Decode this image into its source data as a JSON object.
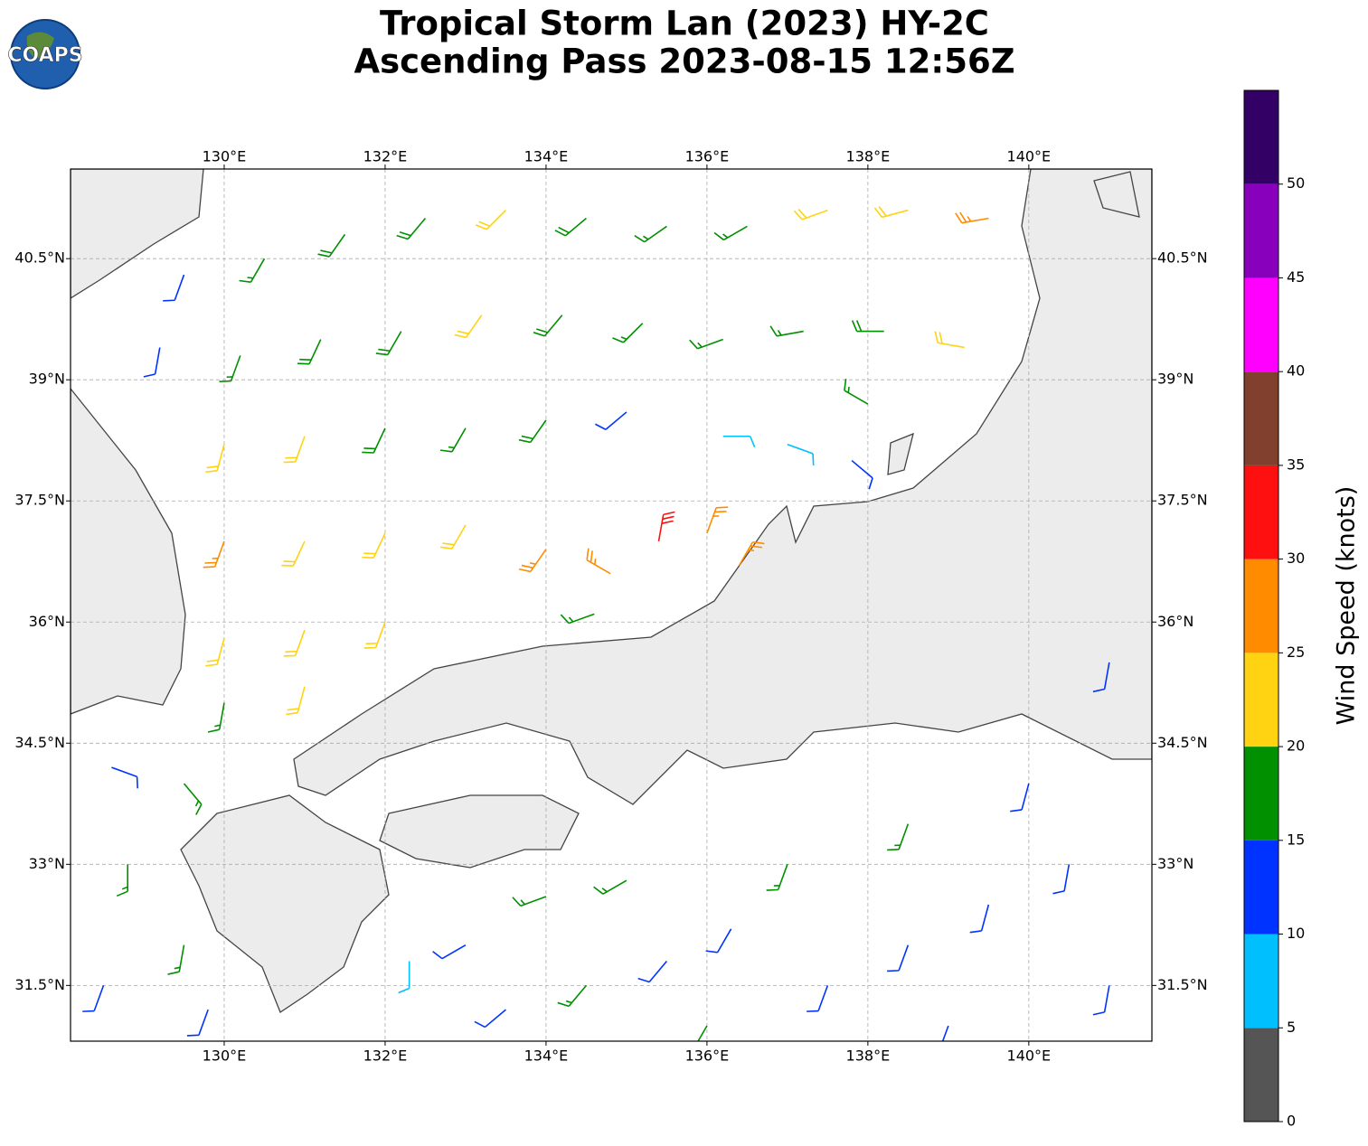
{
  "title": [
    "Tropical Storm Lan (2023) HY-2C",
    "Ascending Pass 2023-08-15 12:56Z"
  ],
  "logo": "COAPS",
  "map": {
    "lon_range": [
      128.09,
      141.53
    ],
    "lat_range": [
      30.81,
      41.61
    ],
    "grid": true,
    "lon_ticks": [
      {
        "value": 130,
        "label": "130°E"
      },
      {
        "value": 132,
        "label": "132°E"
      },
      {
        "value": 134,
        "label": "134°E"
      },
      {
        "value": 136,
        "label": "136°E"
      },
      {
        "value": 138,
        "label": "138°E"
      },
      {
        "value": 140,
        "label": "140°E"
      }
    ],
    "lat_ticks": [
      {
        "value": 31.5,
        "label": "31.5°N"
      },
      {
        "value": 33,
        "label": "33°N"
      },
      {
        "value": 34.5,
        "label": "34.5°N"
      },
      {
        "value": 36,
        "label": "36°N"
      },
      {
        "value": 37.5,
        "label": "37.5°N"
      },
      {
        "value": 39,
        "label": "39°N"
      },
      {
        "value": 40.5,
        "label": "40.5°N"
      }
    ]
  },
  "colorbar": {
    "label": "Wind Speed (knots)",
    "lim": [
      0,
      55
    ],
    "ticks": [
      0,
      5,
      10,
      15,
      20,
      25,
      30,
      35,
      40,
      45,
      50
    ],
    "colors": [
      "#555555",
      "#00bfff",
      "#0033ff",
      "#009000",
      "#ffd311",
      "#ff8c00",
      "#ff1010",
      "#80402d",
      "#ff00ff",
      "#8800bb",
      "#330066"
    ]
  },
  "barbs": {
    "lon": [
      129.5,
      130.5,
      131.5,
      132.5,
      133.5,
      134.5,
      135.5,
      136.5,
      137.5,
      138.5,
      139.5,
      129.2,
      130.2,
      131.2,
      132.2,
      133.2,
      134.2,
      135.2,
      136.2,
      137.2,
      138.2,
      139.2,
      130.0,
      131.0,
      132.0,
      133.0,
      134.0,
      135.0,
      136.2,
      137.0,
      137.8,
      138.0,
      130.0,
      131.0,
      132.0,
      133.0,
      134.0,
      134.8,
      135.4,
      136.0,
      136.4,
      134.6,
      130.0,
      131.0,
      132.0,
      130.0,
      131.0,
      128.6,
      129.5,
      128.8,
      129.5,
      128.5,
      129.8,
      132.3,
      133.0,
      134.0,
      135.0,
      133.5,
      134.5,
      135.5,
      136.3,
      137.0,
      137.5,
      138.5,
      138.5,
      139.5,
      140.0,
      140.5,
      141.0,
      141.0,
      139.0,
      136.0
    ],
    "lat": [
      40.3,
      40.5,
      40.8,
      41.0,
      41.1,
      41.0,
      40.9,
      40.9,
      41.1,
      41.1,
      41.0,
      39.4,
      39.3,
      39.5,
      39.6,
      39.8,
      39.8,
      39.7,
      39.5,
      39.6,
      39.6,
      39.4,
      38.2,
      38.3,
      38.4,
      38.4,
      38.5,
      38.6,
      38.3,
      38.2,
      38.0,
      38.7,
      37.0,
      37.0,
      37.1,
      37.2,
      36.9,
      36.6,
      37.0,
      37.1,
      36.7,
      36.1,
      35.8,
      35.9,
      36.0,
      35.0,
      35.2,
      34.2,
      34.0,
      33.0,
      32.0,
      31.5,
      31.2,
      31.8,
      32.0,
      32.6,
      32.8,
      31.2,
      31.5,
      31.8,
      32.2,
      33.0,
      31.5,
      32.0,
      33.5,
      32.5,
      34.0,
      33.0,
      35.5,
      31.5,
      31.0,
      31.0
    ],
    "speed": [
      12,
      17,
      18,
      18,
      22,
      18,
      17,
      17,
      22,
      22,
      27,
      12,
      17,
      18,
      18,
      22,
      18,
      17,
      17,
      17,
      18,
      22,
      22,
      22,
      18,
      17,
      18,
      12,
      8,
      8,
      12,
      17,
      27,
      22,
      22,
      22,
      27,
      27,
      32,
      27,
      27,
      17,
      22,
      22,
      22,
      17,
      22,
      12,
      17,
      17,
      17,
      12,
      12,
      8,
      12,
      17,
      17,
      12,
      17,
      12,
      12,
      17,
      12,
      12,
      17,
      12,
      12,
      12,
      12,
      12,
      12,
      17
    ],
    "direction": [
      200,
      210,
      215,
      220,
      225,
      230,
      235,
      240,
      250,
      255,
      260,
      190,
      200,
      205,
      210,
      215,
      220,
      225,
      250,
      260,
      270,
      280,
      195,
      200,
      205,
      210,
      215,
      230,
      90,
      110,
      130,
      300,
      200,
      205,
      205,
      210,
      215,
      300,
      10,
      20,
      30,
      250,
      195,
      200,
      200,
      190,
      195,
      110,
      140,
      180,
      190,
      200,
      200,
      180,
      240,
      250,
      240,
      230,
      220,
      220,
      210,
      200,
      200,
      200,
      200,
      195,
      195,
      190,
      190,
      190,
      200,
      210
    ]
  }
}
